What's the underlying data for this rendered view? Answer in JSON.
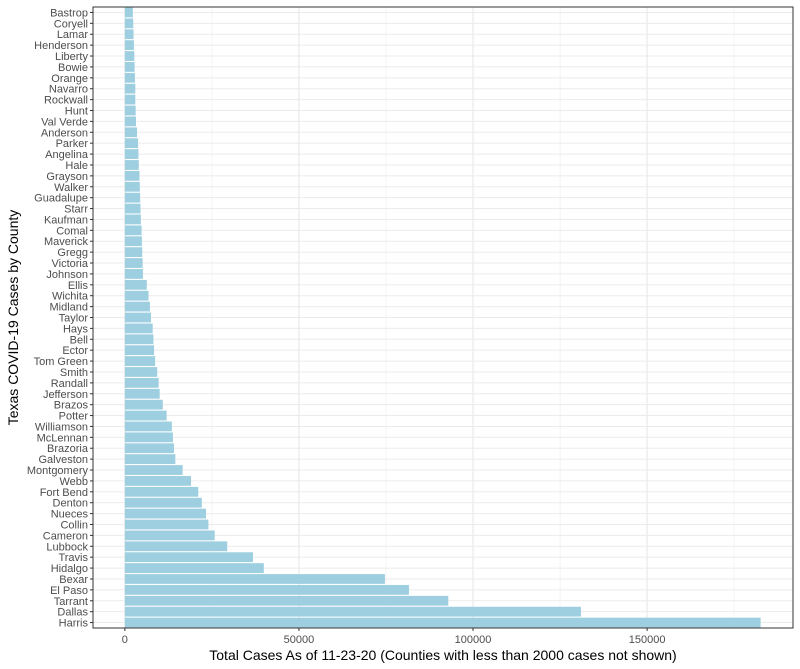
{
  "chart_data": {
    "type": "bar",
    "orientation": "horizontal",
    "xlabel": "Total Cases As of 11-23-20 (Counties with less than 2000 cases not shown)",
    "ylabel": "Texas COVID-19 Cases by County",
    "xlim": [
      -9150,
      191900
    ],
    "xticks": [
      0,
      50000,
      100000,
      150000
    ],
    "xtick_labels": [
      "0",
      "50000",
      "100000",
      "150000"
    ],
    "grid": true,
    "legend": "none",
    "bar_color": "#9ecfe0",
    "categories": [
      "Bastrop",
      "Coryell",
      "Lamar",
      "Henderson",
      "Liberty",
      "Bowie",
      "Orange",
      "Navarro",
      "Rockwall",
      "Hunt",
      "Val Verde",
      "Anderson",
      "Parker",
      "Angelina",
      "Hale",
      "Grayson",
      "Walker",
      "Guadalupe",
      "Starr",
      "Kaufman",
      "Comal",
      "Maverick",
      "Gregg",
      "Victoria",
      "Johnson",
      "Ellis",
      "Wichita",
      "Midland",
      "Taylor",
      "Hays",
      "Bell",
      "Ector",
      "Tom Green",
      "Smith",
      "Randall",
      "Jefferson",
      "Brazos",
      "Potter",
      "Williamson",
      "McLennan",
      "Brazoria",
      "Galveston",
      "Montgomery",
      "Webb",
      "Fort Bend",
      "Denton",
      "Nueces",
      "Collin",
      "Cameron",
      "Lubbock",
      "Travis",
      "Hidalgo",
      "Bexar",
      "El Paso",
      "Tarrant",
      "Dallas",
      "Harris"
    ],
    "values": [
      2300,
      2400,
      2500,
      2600,
      2700,
      2800,
      2900,
      3000,
      3000,
      3100,
      3200,
      3500,
      3800,
      3900,
      4000,
      4200,
      4300,
      4400,
      4500,
      4600,
      4800,
      4900,
      5000,
      5100,
      5200,
      6300,
      6800,
      7200,
      7500,
      8000,
      8200,
      8400,
      8700,
      9300,
      9700,
      10000,
      10900,
      12000,
      13500,
      13800,
      14100,
      14500,
      16600,
      19000,
      21100,
      22100,
      23300,
      24000,
      25800,
      29400,
      36800,
      39900,
      74700,
      81600,
      92900,
      131000,
      182600
    ]
  }
}
